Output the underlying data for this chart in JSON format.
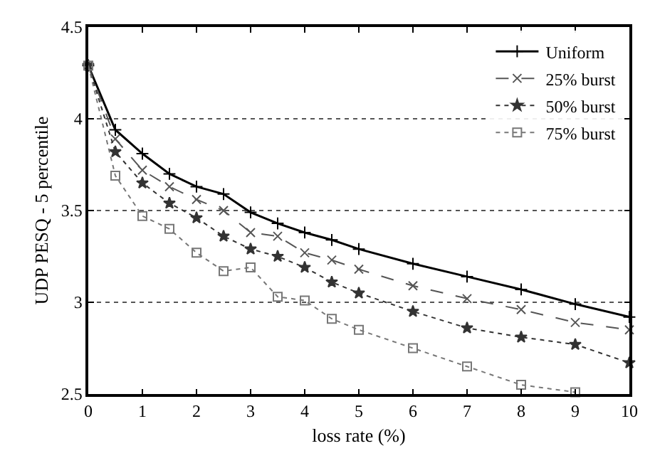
{
  "chart_data": {
    "type": "line",
    "xlabel": "loss rate (%)",
    "ylabel": "UDP PESQ - 5 percentile",
    "x": [
      0,
      0.5,
      1,
      1.5,
      2,
      2.5,
      3,
      3.5,
      4,
      4.5,
      5,
      6,
      7,
      8,
      9,
      10
    ],
    "series": [
      {
        "name": "Uniform",
        "color": "#000000",
        "marker": "cross",
        "line_style": "solid",
        "values": [
          4.29,
          3.94,
          3.81,
          3.7,
          3.63,
          3.59,
          3.49,
          3.43,
          3.38,
          3.34,
          3.29,
          3.21,
          3.14,
          3.07,
          2.99,
          2.92
        ]
      },
      {
        "name": "25% burst",
        "color": "#555555",
        "marker": "x",
        "line_style": "dashed",
        "values": [
          4.29,
          3.89,
          3.72,
          3.63,
          3.56,
          3.5,
          3.38,
          3.36,
          3.27,
          3.23,
          3.18,
          3.09,
          3.02,
          2.96,
          2.89,
          2.85
        ]
      },
      {
        "name": "50% burst",
        "color": "#333333",
        "marker": "star",
        "line_style": "dotted",
        "values": [
          4.29,
          3.82,
          3.65,
          3.54,
          3.46,
          3.36,
          3.29,
          3.25,
          3.19,
          3.11,
          3.05,
          2.95,
          2.86,
          2.81,
          2.77,
          2.67
        ]
      },
      {
        "name": "75% burst",
        "color": "#777777",
        "marker": "square",
        "line_style": "dotted",
        "values": [
          4.29,
          3.69,
          3.47,
          3.4,
          3.27,
          3.17,
          3.19,
          3.03,
          3.01,
          2.91,
          2.85,
          2.75,
          2.65,
          2.55,
          2.51,
          null
        ]
      }
    ],
    "xlim": [
      0,
      10
    ],
    "xticks": [
      0,
      1,
      2,
      3,
      4,
      5,
      6,
      7,
      8,
      9,
      10
    ],
    "ylim": [
      2.5,
      4.5
    ],
    "yticks": [
      2.5,
      3,
      3.5,
      4,
      4.5
    ],
    "grid": "y",
    "legend": "top right"
  }
}
